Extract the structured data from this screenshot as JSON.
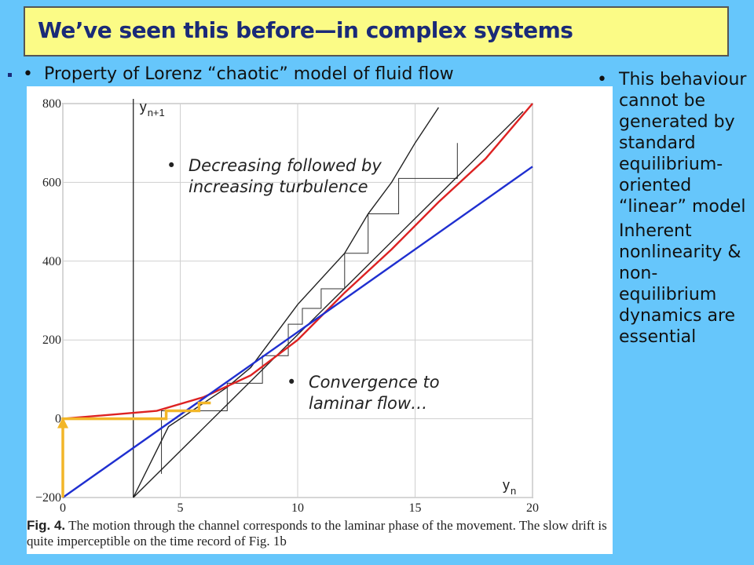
{
  "slide": {
    "title": "We’ve seen this before—in complex systems",
    "top_bullet": "Property of Lorenz “chaotic” model of fluid flow",
    "right_bullets": [
      "This behaviour cannot be generated by standard equilibrium-oriented “linear” model",
      "Inherent nonlinearity & non-equilibrium dynamics are essential"
    ],
    "overlay_notes": [
      "Decreasing followed by increasing turbulence",
      "Convergence to laminar flow…"
    ],
    "bullet_glyph": "•"
  },
  "figure": {
    "fig_label": "Fig. 4.",
    "caption": "The motion through the channel corresponds to the laminar phase of the movement. The slow drift is quite imperceptible on the time record of Fig. 1b",
    "y_axis_label": "y",
    "y_axis_sub": "n+1",
    "x_axis_label": "y",
    "x_axis_sub": "n",
    "colors": {
      "red": "#dd2222",
      "blue": "#1f2fd0",
      "orange": "#f2b628",
      "black": "#222222"
    }
  },
  "chart_data": {
    "type": "line",
    "title": "",
    "xlabel": "yn",
    "ylabel": "yn+1",
    "xlim": [
      0,
      20
    ],
    "ylim": [
      -200,
      800
    ],
    "x_ticks": [
      "0",
      "5",
      "10",
      "15",
      "20"
    ],
    "y_ticks": [
      "−200",
      "0",
      "200",
      "400",
      "600",
      "800"
    ],
    "grid": true,
    "series": [
      {
        "name": "",
        "color": "#dd2222",
        "x": [
          0,
          4,
          6,
          8,
          10,
          12,
          14,
          16,
          18,
          20
        ],
        "y": [
          0,
          20,
          55,
          110,
          200,
          320,
          430,
          550,
          660,
          800
        ]
      },
      {
        "name": "",
        "color": "#1f2fd0",
        "x": [
          0,
          20
        ],
        "y": [
          -200,
          640
        ]
      },
      {
        "name": "",
        "color": "#222222",
        "x": [
          3,
          20
        ],
        "y": [
          -200,
          780
        ]
      }
    ]
  }
}
